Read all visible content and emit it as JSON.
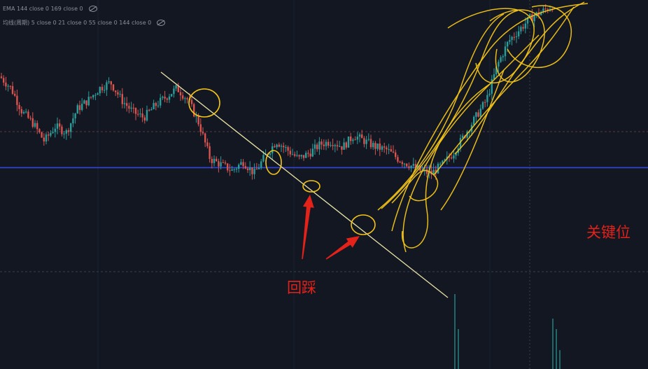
{
  "legend": {
    "row1": "EMA 144 close 0 169 close 0",
    "row2": "均线(周期) 5 close 0 21 close 0 55 close 0 144 close 0",
    "eye_icon": "eye-slash-icon"
  },
  "annotations": {
    "key_level": "关键位",
    "pullback": "回踩"
  },
  "colors": {
    "background": "#121722",
    "up_candle": "#2a9d9a",
    "down_candle": "#d9534f",
    "key_level_line": "#3346d6",
    "trendline": "#e8e2a6",
    "marker": "#f5c518",
    "arrow": "#e3221a",
    "dashed_level": "#5a3a44"
  },
  "chart_data": {
    "type": "candlestick",
    "description_free": true,
    "ylim": [
      0,
      100
    ],
    "key_level": 43,
    "dashed_levels": [
      63,
      26
    ],
    "trendline": [
      [
        0,
        80
      ],
      [
        100,
        8
      ]
    ],
    "close_path": [
      [
        0,
        74
      ],
      [
        2,
        70
      ],
      [
        4,
        62
      ],
      [
        6,
        58
      ],
      [
        8,
        52
      ],
      [
        10,
        57
      ],
      [
        12,
        55
      ],
      [
        14,
        63
      ],
      [
        16,
        66
      ],
      [
        18,
        70
      ],
      [
        20,
        72
      ],
      [
        22,
        66
      ],
      [
        24,
        62
      ],
      [
        26,
        60
      ],
      [
        28,
        64
      ],
      [
        30,
        67
      ],
      [
        32,
        70
      ],
      [
        34,
        66
      ],
      [
        36,
        58
      ],
      [
        38,
        46
      ],
      [
        40,
        44
      ],
      [
        42,
        42
      ],
      [
        44,
        45
      ],
      [
        46,
        41
      ],
      [
        48,
        47
      ],
      [
        50,
        52
      ],
      [
        52,
        49
      ],
      [
        54,
        46
      ],
      [
        56,
        48
      ],
      [
        58,
        51
      ],
      [
        60,
        52
      ],
      [
        62,
        50
      ],
      [
        64,
        54
      ],
      [
        66,
        52
      ],
      [
        68,
        50
      ],
      [
        70,
        49
      ],
      [
        72,
        46
      ],
      [
        74,
        44
      ],
      [
        76,
        42
      ],
      [
        78,
        41
      ],
      [
        80,
        44
      ],
      [
        82,
        48
      ],
      [
        84,
        54
      ],
      [
        86,
        60
      ],
      [
        88,
        66
      ],
      [
        90,
        78
      ],
      [
        92,
        86
      ],
      [
        94,
        90
      ],
      [
        96,
        94
      ],
      [
        98,
        96
      ],
      [
        100,
        98
      ]
    ]
  }
}
